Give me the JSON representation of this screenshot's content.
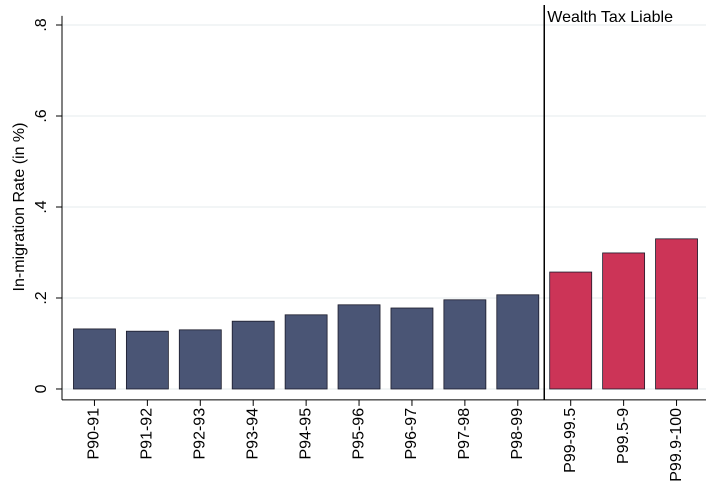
{
  "chart_data": {
    "type": "bar",
    "ylabel": "In-migration Rate (in %)",
    "annotation": "Wealth Tax Liable",
    "categories": [
      "P90-91",
      "P91-92",
      "P92-93",
      "P93-94",
      "P94-95",
      "P95-96",
      "P96-97",
      "P97-98",
      "P98-99",
      "P99-99.5",
      "P99.5-9",
      "P99.9-100"
    ],
    "values": [
      0.132,
      0.127,
      0.13,
      0.149,
      0.163,
      0.185,
      0.178,
      0.196,
      0.207,
      0.257,
      0.299,
      0.33
    ],
    "colors": [
      "#4a5575",
      "#4a5575",
      "#4a5575",
      "#4a5575",
      "#4a5575",
      "#4a5575",
      "#4a5575",
      "#4a5575",
      "#4a5575",
      "#cc3457",
      "#cc3457",
      "#cc3457"
    ],
    "ylim": [
      -0.024,
      0.82
    ],
    "yticks": [
      0,
      {
        "value": 0.2,
        "label": ".2"
      },
      {
        "value": 0.4,
        "label": ".4"
      },
      {
        "value": 0.6,
        "label": ".6"
      },
      {
        "value": 0.8,
        "label": ".8"
      }
    ],
    "grid": true
  }
}
